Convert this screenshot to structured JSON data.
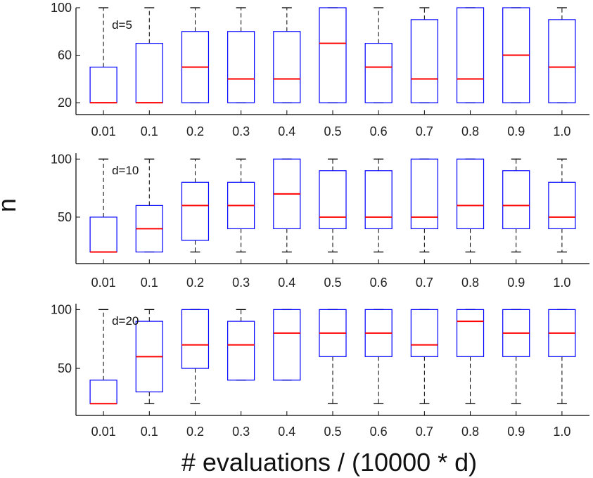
{
  "colors": {
    "box": "#0000ff",
    "median": "#ff0000",
    "whisker": "#000000",
    "axis": "#000000"
  },
  "ylabel": "n",
  "xlabel": "# evaluations / (10000 * d)",
  "chart_data": [
    {
      "type": "box",
      "label": "d=5",
      "categories": [
        "0.01",
        "0.1",
        "0.2",
        "0.3",
        "0.4",
        "0.5",
        "0.6",
        "0.7",
        "0.8",
        "0.9",
        "1.0"
      ],
      "ylim": [
        10,
        100
      ],
      "yticks": [
        20,
        60,
        100
      ],
      "boxes": [
        {
          "q1": 20,
          "median": 20,
          "q3": 50,
          "whisker_low": 20,
          "whisker_high": 100
        },
        {
          "q1": 20,
          "median": 20,
          "q3": 70,
          "whisker_low": 20,
          "whisker_high": 100
        },
        {
          "q1": 20,
          "median": 50,
          "q3": 80,
          "whisker_low": 20,
          "whisker_high": 100
        },
        {
          "q1": 20,
          "median": 40,
          "q3": 80,
          "whisker_low": 20,
          "whisker_high": 100
        },
        {
          "q1": 20,
          "median": 40,
          "q3": 80,
          "whisker_low": 20,
          "whisker_high": 100
        },
        {
          "q1": 20,
          "median": 70,
          "q3": 100,
          "whisker_low": 20,
          "whisker_high": 100
        },
        {
          "q1": 20,
          "median": 50,
          "q3": 70,
          "whisker_low": 20,
          "whisker_high": 100
        },
        {
          "q1": 20,
          "median": 40,
          "q3": 90,
          "whisker_low": 20,
          "whisker_high": 100
        },
        {
          "q1": 20,
          "median": 40,
          "q3": 100,
          "whisker_low": 20,
          "whisker_high": 100
        },
        {
          "q1": 20,
          "median": 60,
          "q3": 100,
          "whisker_low": 20,
          "whisker_high": 100
        },
        {
          "q1": 20,
          "median": 50,
          "q3": 90,
          "whisker_low": 20,
          "whisker_high": 100
        }
      ]
    },
    {
      "type": "box",
      "label": "d=10",
      "categories": [
        "0.01",
        "0.1",
        "0.2",
        "0.3",
        "0.4",
        "0.5",
        "0.6",
        "0.7",
        "0.8",
        "0.9",
        "1.0"
      ],
      "ylim": [
        10,
        105
      ],
      "yticks": [
        50,
        100
      ],
      "boxes": [
        {
          "q1": 20,
          "median": 20,
          "q3": 50,
          "whisker_low": 20,
          "whisker_high": 100
        },
        {
          "q1": 20,
          "median": 40,
          "q3": 60,
          "whisker_low": 20,
          "whisker_high": 100
        },
        {
          "q1": 30,
          "median": 60,
          "q3": 80,
          "whisker_low": 20,
          "whisker_high": 100
        },
        {
          "q1": 40,
          "median": 60,
          "q3": 80,
          "whisker_low": 20,
          "whisker_high": 100
        },
        {
          "q1": 40,
          "median": 70,
          "q3": 100,
          "whisker_low": 20,
          "whisker_high": 100
        },
        {
          "q1": 40,
          "median": 50,
          "q3": 90,
          "whisker_low": 20,
          "whisker_high": 100
        },
        {
          "q1": 40,
          "median": 50,
          "q3": 90,
          "whisker_low": 20,
          "whisker_high": 100
        },
        {
          "q1": 40,
          "median": 50,
          "q3": 100,
          "whisker_low": 20,
          "whisker_high": 100
        },
        {
          "q1": 40,
          "median": 60,
          "q3": 100,
          "whisker_low": 20,
          "whisker_high": 100
        },
        {
          "q1": 40,
          "median": 60,
          "q3": 90,
          "whisker_low": 20,
          "whisker_high": 100
        },
        {
          "q1": 40,
          "median": 50,
          "q3": 80,
          "whisker_low": 20,
          "whisker_high": 100
        }
      ]
    },
    {
      "type": "box",
      "label": "d=20",
      "categories": [
        "0.01",
        "0.1",
        "0.2",
        "0.3",
        "0.4",
        "0.5",
        "0.6",
        "0.7",
        "0.8",
        "0.9",
        "1.0"
      ],
      "ylim": [
        10,
        105
      ],
      "yticks": [
        50,
        100
      ],
      "boxes": [
        {
          "q1": 20,
          "median": 20,
          "q3": 40,
          "whisker_low": 20,
          "whisker_high": 100
        },
        {
          "q1": 30,
          "median": 60,
          "q3": 90,
          "whisker_low": 20,
          "whisker_high": 100
        },
        {
          "q1": 50,
          "median": 70,
          "q3": 100,
          "whisker_low": 20,
          "whisker_high": 100
        },
        {
          "q1": 40,
          "median": 70,
          "q3": 90,
          "whisker_low": 40,
          "whisker_high": 100
        },
        {
          "q1": 40,
          "median": 80,
          "q3": 100,
          "whisker_low": 40,
          "whisker_high": 100
        },
        {
          "q1": 60,
          "median": 80,
          "q3": 100,
          "whisker_low": 20,
          "whisker_high": 100
        },
        {
          "q1": 60,
          "median": 80,
          "q3": 100,
          "whisker_low": 20,
          "whisker_high": 100
        },
        {
          "q1": 60,
          "median": 70,
          "q3": 100,
          "whisker_low": 20,
          "whisker_high": 100
        },
        {
          "q1": 60,
          "median": 90,
          "q3": 100,
          "whisker_low": 20,
          "whisker_high": 100
        },
        {
          "q1": 60,
          "median": 80,
          "q3": 100,
          "whisker_low": 20,
          "whisker_high": 100
        },
        {
          "q1": 60,
          "median": 80,
          "q3": 100,
          "whisker_low": 20,
          "whisker_high": 100
        }
      ]
    }
  ]
}
